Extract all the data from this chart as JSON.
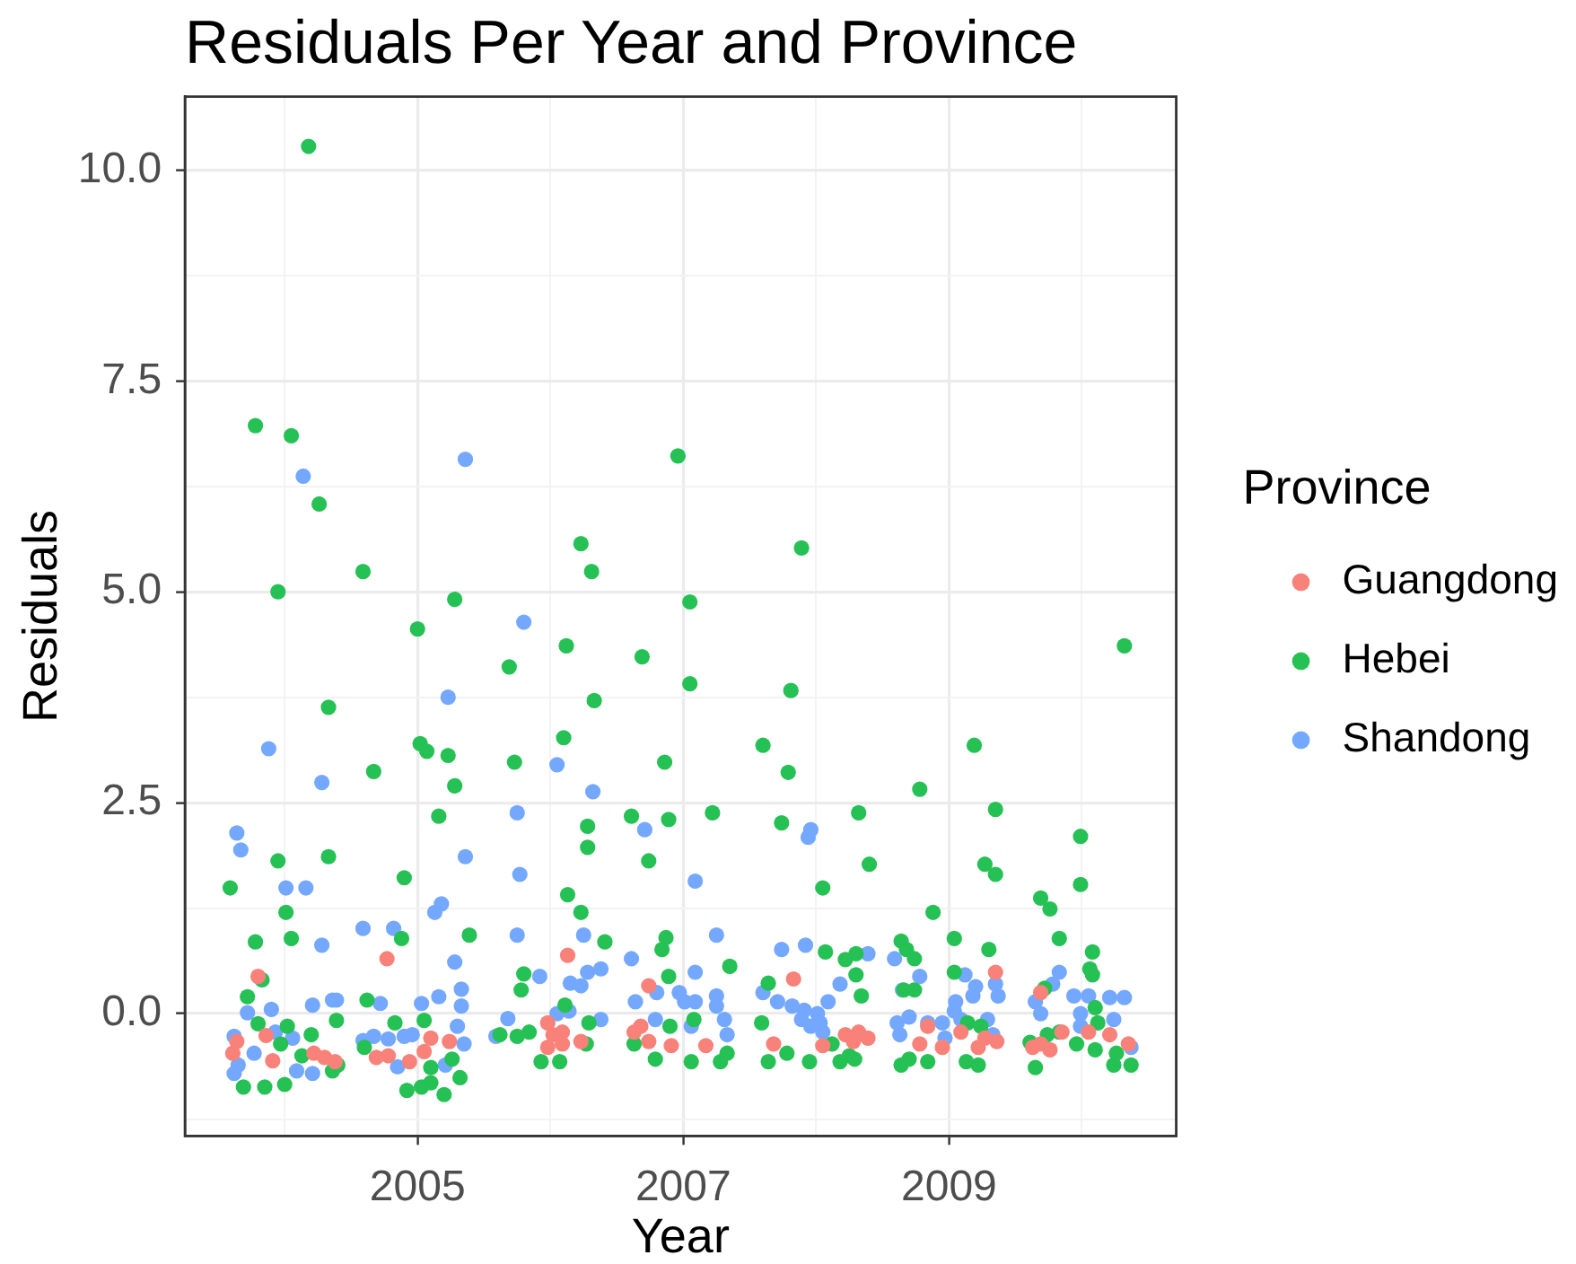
{
  "chart_data": {
    "type": "scatter",
    "title": "Residuals Per Year and Province",
    "xlabel": "Year",
    "ylabel": "Residuals",
    "legend_title": "Province",
    "legend": "right",
    "grid": true,
    "marker": "circle",
    "xlim": [
      2003.25,
      2010.71
    ],
    "ylim": [
      -1.45,
      10.87
    ],
    "xticks": [
      {
        "value": 2004,
        "label": null
      },
      2005,
      {
        "value": 2006,
        "label": null
      },
      2007,
      {
        "value": 2008,
        "label": null
      },
      2009,
      {
        "value": 2010,
        "label": null
      }
    ],
    "yticks": [
      {
        "value": -1.25,
        "label": null
      },
      {
        "value": 0,
        "label": "0.0"
      },
      {
        "value": 1.25,
        "label": null
      },
      {
        "value": 2.5,
        "label": "2.5"
      },
      {
        "value": 3.75,
        "label": null
      },
      {
        "value": 5,
        "label": "5.0"
      },
      {
        "value": 6.25,
        "label": null
      },
      {
        "value": 7.5,
        "label": "7.5"
      },
      {
        "value": 8.75,
        "label": null
      },
      {
        "value": 10,
        "label": "10.0"
      }
    ],
    "series": [
      {
        "name": "Guangdong",
        "color": "#f8827a",
        "x": [
          2004.77,
          2003.8,
          2003.64,
          2003.61,
          2003.86,
          2003.91,
          2004.22,
          2004.3,
          2004.38,
          2004.69,
          2004.78,
          2004.94,
          2005.05,
          2005.1,
          2005.24,
          2006.13,
          2007.83,
          2006.74,
          2005.98,
          2006.02,
          2005.98,
          2006.09,
          2006.23,
          2006.09,
          2006.63,
          2006.68,
          2006.74,
          2006.91,
          2007.17,
          2007.68,
          2008.05,
          2008.22,
          2009.35,
          2009.69,
          2008.32,
          2008.39,
          2008.28,
          2008.84,
          2008.78,
          2008.95,
          2009.09,
          2009.22,
          2009.27,
          2009.36,
          2009.63,
          2009.76,
          2009.85,
          2010.05,
          2010.21,
          2010.35,
          2009.69
        ],
        "values": [
          0.65,
          0.44,
          -0.33,
          -0.47,
          -0.26,
          -0.56,
          -0.47,
          -0.52,
          -0.57,
          -0.52,
          -0.5,
          -0.57,
          -0.45,
          -0.29,
          -0.33,
          0.69,
          0.41,
          0.33,
          -0.11,
          -0.25,
          -0.4,
          -0.36,
          -0.33,
          -0.22,
          -0.22,
          -0.15,
          -0.33,
          -0.38,
          -0.38,
          -0.36,
          -0.38,
          -0.25,
          0.49,
          0.25,
          -0.22,
          -0.29,
          -0.33,
          -0.15,
          -0.36,
          -0.4,
          -0.22,
          -0.4,
          -0.29,
          -0.33,
          -0.4,
          -0.43,
          -0.22,
          -0.22,
          -0.25,
          -0.36,
          -0.36
        ]
      },
      {
        "name": "Hebei",
        "color": "#25c154",
        "x": [
          2004.18,
          2003.78,
          2004.05,
          2004.26,
          2006.96,
          2006.23,
          2006.31,
          2004.59,
          2003.95,
          2005.28,
          2005.0,
          2006.12,
          2006.69,
          2005.69,
          2006.33,
          2004.33,
          2007.89,
          2007.05,
          2007.05,
          2007.81,
          2010.32,
          2004.67,
          2005.02,
          2005.07,
          2005.23,
          2005.28,
          2005.73,
          2003.95,
          2004.33,
          2005.16,
          2003.59,
          2004.9,
          2004.01,
          2004.88,
          2003.78,
          2004.05,
          2005.39,
          2003.83,
          2003.72,
          2004.62,
          2004.39,
          2005.05,
          2003.8,
          2003.69,
          2003.85,
          2004.0,
          2004.36,
          2003.97,
          2004.13,
          2004.2,
          2004.02,
          2004.4,
          2004.83,
          2004.6,
          2004.92,
          2005.03,
          2005.1,
          2005.2,
          2005.1,
          2005.32,
          2005.26,
          2005.78,
          2005.8,
          2005.62,
          2006.1,
          2006.86,
          2007.6,
          2007.79,
          2006.61,
          2006.89,
          2007.22,
          2007.74,
          2006.28,
          2006.28,
          2006.74,
          2008.05,
          2006.13,
          2006.23,
          2006.41,
          2006.87,
          2006.84,
          2007.35,
          2008.07,
          2008.22,
          2006.89,
          2007.64,
          2005.93,
          2006.07,
          2005.84,
          2005.75,
          2006.29,
          2006.27,
          2006.79,
          2006.63,
          2007.06,
          2007.28,
          2007.33,
          2007.08,
          2006.9,
          2007.59,
          2007.64,
          2007.78,
          2007.95,
          2008.12,
          2008.18,
          2008.25,
          2006.11,
          2009.19,
          2008.78,
          2008.32,
          2009.35,
          2009.99,
          2008.4,
          2009.27,
          2009.35,
          2009.99,
          2009.69,
          2009.76,
          2008.88,
          2009.04,
          2009.83,
          2009.3,
          2008.64,
          2008.68,
          2008.74,
          2008.3,
          2010.08,
          2010.06,
          2010.08,
          2008.3,
          2008.34,
          2008.64,
          2008.7,
          2008.84,
          2009.13,
          2009.22,
          2009.65,
          2009.61,
          2009.96,
          2010.1,
          2010.24,
          2010.37,
          2010.26,
          2008.29,
          2008.66,
          2008.74,
          2009.04,
          2009.14,
          2009.24,
          2010.1,
          2010.12,
          2009.83,
          2009.74,
          2009.72
        ],
        "values": [
          10.28,
          6.97,
          6.85,
          6.04,
          6.61,
          5.57,
          5.24,
          5.24,
          5.0,
          4.91,
          4.56,
          4.36,
          4.23,
          4.11,
          3.71,
          3.63,
          5.52,
          4.88,
          3.91,
          3.83,
          4.36,
          2.87,
          3.2,
          3.11,
          3.06,
          2.7,
          2.98,
          1.81,
          1.86,
          2.34,
          1.49,
          1.61,
          1.2,
          0.89,
          0.85,
          0.89,
          0.93,
          0.4,
          0.2,
          0.16,
          -0.08,
          -0.08,
          -0.12,
          -0.87,
          -0.87,
          -0.84,
          -0.68,
          -0.36,
          -0.5,
          -0.25,
          -0.15,
          -0.61,
          -0.11,
          -0.4,
          -0.91,
          -0.87,
          -0.82,
          -0.96,
          -0.64,
          -0.76,
          -0.54,
          0.28,
          0.47,
          -0.25,
          3.27,
          2.98,
          3.18,
          2.86,
          2.34,
          2.3,
          2.38,
          2.26,
          2.22,
          1.97,
          1.81,
          1.49,
          1.41,
          1.2,
          0.85,
          0.9,
          0.76,
          0.56,
          0.73,
          0.64,
          0.44,
          0.36,
          -0.57,
          -0.57,
          -0.22,
          -0.27,
          -0.11,
          -0.36,
          -0.54,
          -0.36,
          -0.57,
          -0.57,
          -0.47,
          -0.07,
          -0.15,
          -0.11,
          -0.57,
          -0.47,
          -0.57,
          -0.36,
          -0.57,
          -0.5,
          0.1,
          3.18,
          2.66,
          2.38,
          2.42,
          2.1,
          1.77,
          1.77,
          1.65,
          1.53,
          1.37,
          1.24,
          1.2,
          0.89,
          0.89,
          0.76,
          0.86,
          0.76,
          0.65,
          0.71,
          0.73,
          0.53,
          0.46,
          0.46,
          0.21,
          -0.61,
          -0.54,
          -0.57,
          -0.57,
          -0.61,
          -0.64,
          -0.34,
          -0.36,
          -0.43,
          -0.61,
          -0.61,
          -0.47,
          -0.54,
          0.28,
          0.28,
          0.49,
          -0.11,
          -0.15,
          0.07,
          -0.11,
          -0.22,
          -0.25,
          0.3
        ]
      },
      {
        "name": "Shandong",
        "color": "#74a8ff",
        "x": [
          2004.14,
          2005.36,
          2005.8,
          2005.23,
          2003.88,
          2004.28,
          2003.64,
          2003.67,
          2005.36,
          2005.75,
          2005.77,
          2004.01,
          2004.16,
          2005.13,
          2005.18,
          2004.59,
          2004.82,
          2004.28,
          2005.28,
          2005.75,
          2005.33,
          2003.9,
          2004.21,
          2004.36,
          2004.39,
          2004.72,
          2005.03,
          2005.16,
          2005.33,
          2003.72,
          2003.62,
          2003.62,
          2003.65,
          2003.77,
          2003.93,
          2004.06,
          2004.09,
          2004.21,
          2004.59,
          2004.67,
          2004.78,
          2004.9,
          2004.96,
          2004.85,
          2005.21,
          2005.3,
          2005.35,
          2005.59,
          2005.68,
          2006.05,
          2006.32,
          2007.96,
          2007.94,
          2006.71,
          2007.09,
          2006.25,
          2007.25,
          2007.74,
          2007.92,
          2005.92,
          2006.61,
          2006.28,
          2006.38,
          2006.15,
          2006.23,
          2007.09,
          2006.8,
          2006.97,
          2007.01,
          2007.09,
          2007.25,
          2007.25,
          2007.6,
          2007.71,
          2007.82,
          2007.91,
          2008.01,
          2008.09,
          2008.18,
          2007.96,
          2007.89,
          2008.03,
          2008.05,
          2006.64,
          2006.14,
          2006.38,
          2006.05,
          2006.79,
          2007.06,
          2007.31,
          2007.33,
          2008.39,
          2008.59,
          2008.78,
          2009.12,
          2009.2,
          2009.18,
          2009.05,
          2009.04,
          2009.09,
          2009.35,
          2009.37,
          2009.83,
          2009.78,
          2009.94,
          2010.05,
          2010.21,
          2010.32,
          2009.65,
          2009.69,
          2008.65,
          2008.7,
          2008.61,
          2008.63,
          2008.84,
          2008.95,
          2008.97,
          2009.29,
          2009.33,
          2009.99,
          2009.99,
          2010.24,
          2010.37
        ],
        "values": [
          6.37,
          6.57,
          4.64,
          3.75,
          3.14,
          2.74,
          2.14,
          1.94,
          1.86,
          2.38,
          1.65,
          1.49,
          1.49,
          1.2,
          1.3,
          1.01,
          1.01,
          0.81,
          0.61,
          0.93,
          0.29,
          0.05,
          0.1,
          0.16,
          0.16,
          0.12,
          0.12,
          0.2,
          0.09,
          0.01,
          -0.27,
          -0.71,
          -0.61,
          -0.47,
          -0.22,
          -0.29,
          -0.68,
          -0.71,
          -0.32,
          -0.27,
          -0.3,
          -0.27,
          -0.25,
          -0.63,
          -0.61,
          -0.15,
          -0.36,
          -0.27,
          -0.06,
          2.95,
          2.63,
          2.18,
          2.09,
          2.18,
          1.57,
          0.93,
          0.93,
          0.76,
          0.81,
          0.44,
          0.65,
          0.49,
          0.53,
          0.36,
          0.33,
          0.49,
          0.25,
          0.25,
          0.14,
          0.14,
          0.21,
          0.09,
          0.25,
          0.14,
          0.09,
          0.04,
          0.0,
          0.14,
          0.35,
          -0.15,
          -0.07,
          -0.11,
          -0.22,
          0.14,
          0.03,
          -0.07,
          0.0,
          -0.07,
          -0.15,
          -0.07,
          -0.25,
          0.71,
          0.65,
          0.44,
          0.46,
          0.32,
          0.21,
          0.14,
          0.03,
          -0.07,
          0.35,
          0.21,
          0.49,
          0.35,
          0.21,
          0.21,
          0.19,
          0.19,
          0.14,
          0.0,
          0.28,
          -0.04,
          -0.11,
          -0.25,
          -0.11,
          -0.11,
          -0.29,
          -0.07,
          -0.25,
          0.0,
          -0.15,
          -0.07,
          -0.4
        ]
      }
    ]
  }
}
